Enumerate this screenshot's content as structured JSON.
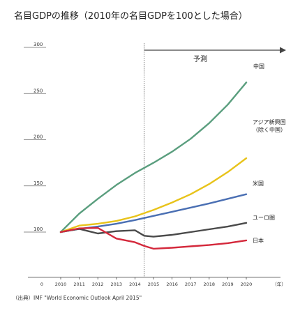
{
  "chart_data": {
    "type": "line",
    "title": "名目GDPの推移（2010年の名目GDPを100とした場合）",
    "x": [
      2010,
      2011,
      2012,
      2013,
      2014,
      2015,
      2016,
      2017,
      2018,
      2019,
      2020
    ],
    "x_tick_labels": [
      "0",
      "2010",
      "2011",
      "2012",
      "2013",
      "2014",
      "2015",
      "2016",
      "2017",
      "2018",
      "2019",
      "2020",
      "（年）"
    ],
    "y_tick_labels": [
      "300",
      "250",
      "200",
      "150",
      "100"
    ],
    "y_ticks": [
      300,
      250,
      200,
      150,
      100
    ],
    "ylim": [
      100,
      300
    ],
    "forecast_start": 2014.5,
    "forecast_label": "予測",
    "series": [
      {
        "name": "中国",
        "color": "#5a9e7e",
        "x": [
          2010,
          2011,
          2012,
          2013,
          2014,
          2015,
          2016,
          2017,
          2018,
          2019,
          2020
        ],
        "values": [
          100,
          120,
          136,
          151,
          164,
          175,
          187,
          201,
          218,
          238,
          262
        ]
      },
      {
        "name_lines": [
          "アジア新興国",
          "（除く中国）"
        ],
        "color": "#e8c31a",
        "x": [
          2010,
          2011,
          2012,
          2013,
          2014,
          2015,
          2016,
          2017,
          2018,
          2019,
          2020
        ],
        "values": [
          100,
          107,
          109,
          112,
          117,
          124,
          132,
          141,
          152,
          165,
          180
        ]
      },
      {
        "name": "米国",
        "color": "#4a6fb3",
        "x": [
          2010,
          2011,
          2012,
          2013,
          2014,
          2015,
          2016,
          2017,
          2018,
          2019,
          2020
        ],
        "values": [
          100,
          103.5,
          106,
          109,
          113,
          117.5,
          122,
          126.5,
          131,
          136,
          141
        ]
      },
      {
        "name": "ユーロ圏",
        "color": "#4a4a4a",
        "x": [
          2010,
          2011,
          2012,
          2013,
          2014,
          2014.5,
          2015,
          2016,
          2017,
          2018,
          2019,
          2020
        ],
        "values": [
          100,
          103.5,
          98.5,
          101,
          102,
          96,
          95,
          97,
          100,
          103,
          106,
          110
        ]
      },
      {
        "name": "日本",
        "color": "#d4283b",
        "x": [
          2010,
          2011,
          2012,
          2013,
          2014,
          2014.5,
          2015,
          2016,
          2017,
          2018,
          2019,
          2020
        ],
        "values": [
          100,
          104,
          104.5,
          93,
          89,
          85,
          82,
          83,
          84.5,
          86,
          88,
          91
        ]
      }
    ],
    "source": "（出典）IMF \"World Economic Outlook April 2015\""
  }
}
